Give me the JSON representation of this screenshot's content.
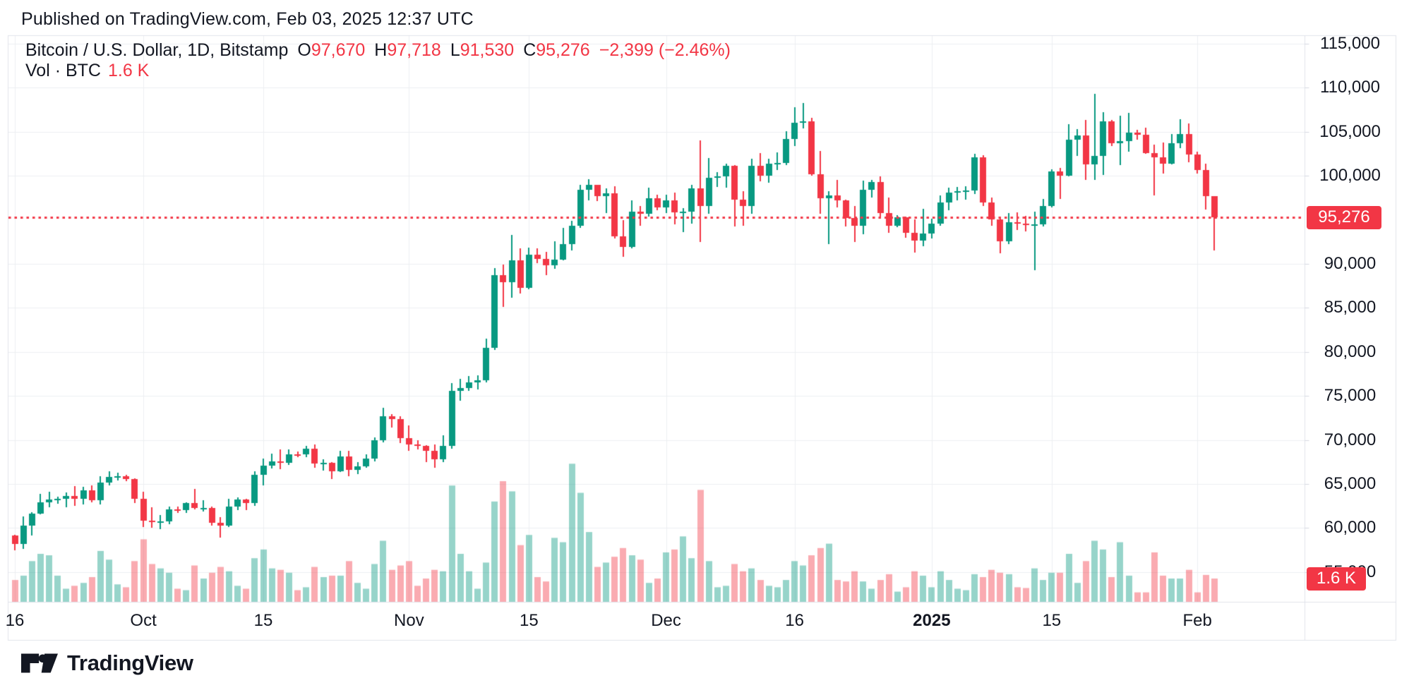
{
  "header": {
    "published_line": "Published on TradingView.com, Feb 03, 2025 12:37 UTC"
  },
  "legend": {
    "symbol_line": "Bitcoin / U.S. Dollar, 1D, Bitstamp",
    "ohlc": [
      {
        "label": "O",
        "value": "97,670"
      },
      {
        "label": "H",
        "value": "97,718"
      },
      {
        "label": "L",
        "value": "91,530"
      },
      {
        "label": "C",
        "value": "95,276"
      }
    ],
    "change": "−2,399 (−2.46%)",
    "volume_label": "Vol · BTC",
    "volume_value": "1.6 K"
  },
  "price_axis": {
    "ticks": [
      {
        "label": "115,000",
        "value": 115000
      },
      {
        "label": "110,000",
        "value": 110000
      },
      {
        "label": "105,000",
        "value": 105000
      },
      {
        "label": "100,000",
        "value": 100000
      },
      {
        "label": "90,000",
        "value": 90000
      },
      {
        "label": "85,000",
        "value": 85000
      },
      {
        "label": "80,000",
        "value": 80000
      },
      {
        "label": "75,000",
        "value": 75000
      },
      {
        "label": "70,000",
        "value": 70000
      },
      {
        "label": "65,000",
        "value": 65000
      },
      {
        "label": "60,000",
        "value": 60000
      },
      {
        "label": "55,000",
        "value": 55000
      }
    ],
    "price_badge": "95,276",
    "volume_badge": "1.6 K"
  },
  "date_axis": {
    "ticks": [
      {
        "label": "16",
        "day_index": 0
      },
      {
        "label": "Oct",
        "day_index": 15
      },
      {
        "label": "15",
        "day_index": 29
      },
      {
        "label": "Nov",
        "day_index": 46
      },
      {
        "label": "15",
        "day_index": 60
      },
      {
        "label": "Dec",
        "day_index": 76
      },
      {
        "label": "16",
        "day_index": 91
      },
      {
        "label": "2025",
        "day_index": 107,
        "bold": true
      },
      {
        "label": "15",
        "day_index": 121
      },
      {
        "label": "Feb",
        "day_index": 138
      }
    ]
  },
  "footer": {
    "brand": "TradingView"
  },
  "colors": {
    "up": "#089981",
    "down": "#f23645",
    "vol_up": "rgba(8,153,129,0.42)",
    "vol_down": "rgba(242,54,69,0.42)",
    "grid": "#edeff2",
    "frame": "#e0e3eb",
    "text": "#131722",
    "accent_red": "#f23645",
    "badge_text": "#ffffff"
  },
  "chart_data": {
    "type": "candlestick_with_volume",
    "title": "Bitcoin / U.S. Dollar",
    "interval": "1D",
    "exchange": "Bitstamp",
    "price_line": 95276,
    "last_bar": {
      "open": 97670,
      "high": 97718,
      "low": 91530,
      "close": 95276,
      "change": -2399,
      "change_pct": -2.46,
      "volume_k": 1.6
    },
    "x_start_date": "2024-09-16",
    "x_end_date": "2025-02-03",
    "ylim": [
      54500,
      115500
    ],
    "volume_unit": "K BTC",
    "candles_format": [
      "date",
      "open",
      "high",
      "low",
      "close",
      "volume_k"
    ],
    "candles": [
      [
        "2024-09-16",
        59130,
        59240,
        57480,
        58210,
        1.5
      ],
      [
        "2024-09-17",
        58210,
        61320,
        57610,
        60310,
        1.8
      ],
      [
        "2024-09-18",
        60310,
        61790,
        59170,
        61650,
        2.8
      ],
      [
        "2024-09-19",
        61650,
        63850,
        61550,
        62940,
        3.3
      ],
      [
        "2024-09-20",
        62940,
        64120,
        62350,
        63200,
        3.2
      ],
      [
        "2024-09-21",
        63200,
        63550,
        62750,
        63350,
        1.8
      ],
      [
        "2024-09-22",
        63350,
        64000,
        62350,
        63650,
        0.9
      ],
      [
        "2024-09-23",
        63650,
        64750,
        62550,
        63330,
        1.1
      ],
      [
        "2024-09-24",
        63330,
        64700,
        62700,
        64300,
        1.3
      ],
      [
        "2024-09-25",
        64300,
        64820,
        62950,
        63150,
        1.7
      ],
      [
        "2024-09-26",
        63150,
        65850,
        62650,
        65200,
        3.5
      ],
      [
        "2024-09-27",
        65200,
        66480,
        64850,
        65790,
        2.9
      ],
      [
        "2024-09-28",
        65790,
        66260,
        65440,
        65890,
        1.2
      ],
      [
        "2024-09-29",
        65890,
        66070,
        65340,
        65600,
        1.0
      ],
      [
        "2024-09-30",
        65600,
        65650,
        62850,
        63330,
        2.8
      ],
      [
        "2024-10-01",
        63330,
        64100,
        60150,
        60840,
        4.3
      ],
      [
        "2024-10-02",
        60840,
        62350,
        60000,
        60650,
        2.6
      ],
      [
        "2024-10-03",
        60650,
        61450,
        59850,
        60750,
        2.3
      ],
      [
        "2024-10-04",
        60750,
        62450,
        60450,
        62100,
        2.0
      ],
      [
        "2024-10-05",
        62100,
        62400,
        61700,
        62050,
        0.9
      ],
      [
        "2024-10-06",
        62050,
        62950,
        61750,
        62800,
        0.8
      ],
      [
        "2024-10-07",
        62800,
        64450,
        62100,
        62250,
        2.5
      ],
      [
        "2024-10-08",
        62250,
        63150,
        61850,
        62300,
        1.6
      ],
      [
        "2024-10-09",
        62300,
        62450,
        60300,
        60600,
        2.0
      ],
      [
        "2024-10-10",
        60600,
        61250,
        58950,
        60300,
        2.4
      ],
      [
        "2024-10-11",
        60300,
        63350,
        60100,
        62450,
        2.1
      ],
      [
        "2024-10-12",
        62450,
        63450,
        62050,
        63200,
        1.1
      ],
      [
        "2024-10-13",
        63200,
        63300,
        62050,
        62850,
        0.9
      ],
      [
        "2024-10-14",
        62850,
        66450,
        62500,
        66050,
        3.0
      ],
      [
        "2024-10-15",
        66050,
        67850,
        64800,
        67050,
        3.6
      ],
      [
        "2024-10-16",
        67050,
        68420,
        66750,
        67600,
        2.3
      ],
      [
        "2024-10-17",
        67600,
        68950,
        66650,
        67400,
        2.2
      ],
      [
        "2024-10-18",
        67400,
        68950,
        67150,
        68400,
        2.0
      ],
      [
        "2024-10-19",
        68400,
        68650,
        68050,
        68350,
        0.8
      ],
      [
        "2024-10-20",
        68350,
        69350,
        68050,
        69000,
        1.0
      ],
      [
        "2024-10-21",
        69000,
        69500,
        66850,
        67350,
        2.4
      ],
      [
        "2024-10-22",
        67350,
        67800,
        66550,
        67400,
        1.7
      ],
      [
        "2024-10-23",
        67400,
        67450,
        65550,
        66450,
        1.8
      ],
      [
        "2024-10-24",
        66450,
        68800,
        66400,
        68150,
        1.8
      ],
      [
        "2024-10-25",
        68150,
        68800,
        65850,
        66600,
        2.8
      ],
      [
        "2024-10-26",
        66600,
        67450,
        66150,
        67000,
        1.3
      ],
      [
        "2024-10-27",
        67000,
        68350,
        66850,
        67900,
        0.9
      ],
      [
        "2024-10-28",
        67900,
        70250,
        67550,
        69950,
        2.6
      ],
      [
        "2024-10-29",
        69950,
        73650,
        69750,
        72700,
        4.2
      ],
      [
        "2024-10-30",
        72700,
        72950,
        71450,
        72350,
        2.2
      ],
      [
        "2024-10-31",
        72350,
        72700,
        69650,
        70200,
        2.5
      ],
      [
        "2024-11-01",
        70200,
        71650,
        68750,
        69450,
        2.8
      ],
      [
        "2024-11-02",
        69450,
        69950,
        68950,
        69300,
        1.1
      ],
      [
        "2024-11-03",
        69300,
        69400,
        67450,
        68750,
        1.6
      ],
      [
        "2024-11-04",
        68750,
        69500,
        66850,
        67800,
        2.2
      ],
      [
        "2024-11-05",
        67800,
        70550,
        67500,
        69350,
        2.1
      ],
      [
        "2024-11-06",
        69350,
        76450,
        69000,
        75600,
        8.0
      ],
      [
        "2024-11-07",
        75600,
        76950,
        74450,
        75900,
        3.3
      ],
      [
        "2024-11-08",
        75900,
        77250,
        75550,
        76500,
        2.1
      ],
      [
        "2024-11-09",
        76500,
        77350,
        75700,
        76750,
        0.9
      ],
      [
        "2024-11-10",
        76750,
        81500,
        76500,
        80450,
        2.7
      ],
      [
        "2024-11-11",
        80450,
        89550,
        80250,
        88700,
        6.9
      ],
      [
        "2024-11-12",
        88700,
        89950,
        85100,
        87950,
        8.3
      ],
      [
        "2024-11-13",
        87950,
        93250,
        86150,
        90400,
        7.6
      ],
      [
        "2024-11-14",
        90400,
        91750,
        86650,
        87300,
        3.9
      ],
      [
        "2024-11-15",
        87300,
        91850,
        87100,
        91050,
        4.6
      ],
      [
        "2024-11-16",
        91050,
        91750,
        90100,
        90550,
        1.7
      ],
      [
        "2024-11-17",
        90550,
        91400,
        88750,
        89850,
        1.4
      ],
      [
        "2024-11-18",
        89850,
        92550,
        89400,
        90500,
        4.4
      ],
      [
        "2024-11-19",
        90500,
        94050,
        90400,
        92250,
        4.1
      ],
      [
        "2024-11-20",
        92250,
        94850,
        91550,
        94300,
        9.5
      ],
      [
        "2024-11-21",
        94300,
        98950,
        94050,
        98400,
        7.5
      ],
      [
        "2024-11-22",
        98400,
        99650,
        97200,
        98950,
        4.8
      ],
      [
        "2024-11-23",
        98950,
        98950,
        97150,
        97700,
        2.4
      ],
      [
        "2024-11-24",
        97700,
        98550,
        95750,
        98000,
        2.7
      ],
      [
        "2024-11-25",
        98000,
        98850,
        92850,
        93100,
        3.1
      ],
      [
        "2024-11-26",
        93100,
        94950,
        90800,
        91950,
        3.7
      ],
      [
        "2024-11-27",
        91950,
        97250,
        91800,
        95900,
        3.2
      ],
      [
        "2024-11-28",
        95900,
        96600,
        94350,
        95650,
        2.9
      ],
      [
        "2024-11-29",
        95650,
        98650,
        95350,
        97450,
        1.3
      ],
      [
        "2024-11-30",
        97450,
        97850,
        96100,
        96400,
        1.6
      ],
      [
        "2024-12-01",
        96400,
        97850,
        95750,
        97200,
        3.4
      ],
      [
        "2024-12-02",
        97200,
        98100,
        94500,
        95850,
        3.6
      ],
      [
        "2024-12-03",
        95850,
        96300,
        93600,
        95900,
        4.5
      ],
      [
        "2024-12-04",
        95900,
        99000,
        94600,
        98600,
        3.0
      ],
      [
        "2024-12-05",
        98600,
        104000,
        92500,
        96550,
        7.7
      ],
      [
        "2024-12-06",
        96550,
        102000,
        95650,
        99800,
        2.8
      ],
      [
        "2024-12-07",
        99800,
        100450,
        98750,
        99900,
        1.0
      ],
      [
        "2024-12-08",
        99900,
        101350,
        98650,
        101100,
        1.1
      ],
      [
        "2024-12-09",
        101100,
        101250,
        94250,
        97300,
        2.6
      ],
      [
        "2024-12-10",
        97300,
        98250,
        94350,
        96600,
        2.1
      ],
      [
        "2024-12-11",
        96600,
        101900,
        95700,
        101150,
        2.3
      ],
      [
        "2024-12-12",
        101150,
        102550,
        99350,
        100050,
        1.5
      ],
      [
        "2024-12-13",
        100050,
        101900,
        99200,
        101400,
        1.1
      ],
      [
        "2024-12-14",
        101400,
        102650,
        100650,
        101450,
        1.0
      ],
      [
        "2024-12-15",
        101450,
        105100,
        101250,
        104150,
        1.5
      ],
      [
        "2024-12-16",
        104150,
        107800,
        103350,
        106050,
        2.8
      ],
      [
        "2024-12-17",
        106050,
        108300,
        105350,
        106150,
        2.5
      ],
      [
        "2024-12-18",
        106150,
        106550,
        100050,
        100200,
        3.2
      ],
      [
        "2024-12-19",
        100200,
        102800,
        95650,
        97470,
        3.7
      ],
      [
        "2024-12-20",
        97470,
        98250,
        92250,
        97800,
        4.0
      ],
      [
        "2024-12-21",
        97800,
        99500,
        96400,
        97250,
        1.5
      ],
      [
        "2024-12-22",
        97250,
        97300,
        94250,
        95200,
        1.4
      ],
      [
        "2024-12-23",
        95200,
        96550,
        92500,
        94300,
        2.1
      ],
      [
        "2024-12-24",
        94300,
        99450,
        93350,
        98450,
        1.4
      ],
      [
        "2024-12-25",
        98450,
        99550,
        97550,
        99300,
        0.9
      ],
      [
        "2024-12-26",
        99300,
        99900,
        95250,
        95750,
        1.5
      ],
      [
        "2024-12-27",
        95750,
        97550,
        93550,
        94300,
        1.9
      ],
      [
        "2024-12-28",
        94300,
        95550,
        94150,
        95300,
        0.7
      ],
      [
        "2024-12-29",
        95300,
        95350,
        93000,
        93550,
        1.0
      ],
      [
        "2024-12-30",
        93550,
        95050,
        91300,
        92650,
        2.1
      ],
      [
        "2024-12-31",
        92650,
        96250,
        92000,
        93450,
        1.8
      ],
      [
        "2025-01-01",
        93450,
        95150,
        92900,
        94560,
        1.0
      ],
      [
        "2025-01-02",
        94560,
        97800,
        94300,
        96950,
        2.1
      ],
      [
        "2025-01-03",
        96950,
        98650,
        96100,
        98120,
        1.5
      ],
      [
        "2025-01-04",
        98120,
        98750,
        97250,
        98230,
        0.9
      ],
      [
        "2025-01-05",
        98230,
        98800,
        97300,
        98330,
        0.8
      ],
      [
        "2025-01-06",
        98330,
        102500,
        97900,
        102100,
        1.9
      ],
      [
        "2025-01-07",
        102100,
        102350,
        96550,
        96950,
        1.7
      ],
      [
        "2025-01-08",
        96950,
        97500,
        94350,
        95050,
        2.2
      ],
      [
        "2025-01-09",
        95050,
        95350,
        91200,
        92550,
        2.0
      ],
      [
        "2025-01-10",
        92550,
        95800,
        92250,
        94700,
        1.9
      ],
      [
        "2025-01-11",
        94700,
        95850,
        93850,
        94600,
        1.0
      ],
      [
        "2025-01-12",
        94600,
        95450,
        93650,
        94500,
        0.95
      ],
      [
        "2025-01-13",
        94500,
        95950,
        89250,
        94500,
        2.3
      ],
      [
        "2025-01-14",
        94500,
        97350,
        94250,
        96560,
        1.5
      ],
      [
        "2025-01-15",
        96560,
        100700,
        96450,
        100500,
        2.0
      ],
      [
        "2025-01-16",
        100500,
        100870,
        97350,
        99990,
        2.0
      ],
      [
        "2025-01-17",
        99990,
        105850,
        99950,
        104100,
        3.3
      ],
      [
        "2025-01-18",
        104100,
        105300,
        102250,
        104550,
        1.3
      ],
      [
        "2025-01-19",
        104550,
        106350,
        99550,
        101330,
        2.8
      ],
      [
        "2025-01-20",
        101330,
        109350,
        99500,
        102260,
        4.2
      ],
      [
        "2025-01-21",
        102260,
        107200,
        100100,
        106150,
        3.6
      ],
      [
        "2025-01-22",
        106150,
        106350,
        103350,
        103700,
        1.7
      ],
      [
        "2025-01-23",
        103700,
        106850,
        101250,
        103960,
        4.1
      ],
      [
        "2025-01-24",
        103960,
        107150,
        102750,
        104870,
        1.8
      ],
      [
        "2025-01-25",
        104870,
        105250,
        104100,
        104700,
        0.65
      ],
      [
        "2025-01-26",
        104700,
        105500,
        102500,
        102600,
        0.65
      ],
      [
        "2025-01-27",
        102600,
        103550,
        97750,
        102080,
        3.4
      ],
      [
        "2025-01-28",
        102080,
        103800,
        100250,
        101340,
        1.8
      ],
      [
        "2025-01-29",
        101340,
        104750,
        101300,
        103700,
        1.6
      ],
      [
        "2025-01-30",
        103700,
        106450,
        103150,
        104735,
        1.6
      ],
      [
        "2025-01-31",
        104735,
        105950,
        101550,
        102400,
        2.2
      ],
      [
        "2025-02-01",
        102400,
        102780,
        100250,
        100655,
        0.65
      ],
      [
        "2025-02-02",
        100655,
        101350,
        96150,
        97700,
        1.85
      ],
      [
        "2025-02-03",
        97670,
        97718,
        91530,
        95276,
        1.6
      ]
    ]
  }
}
